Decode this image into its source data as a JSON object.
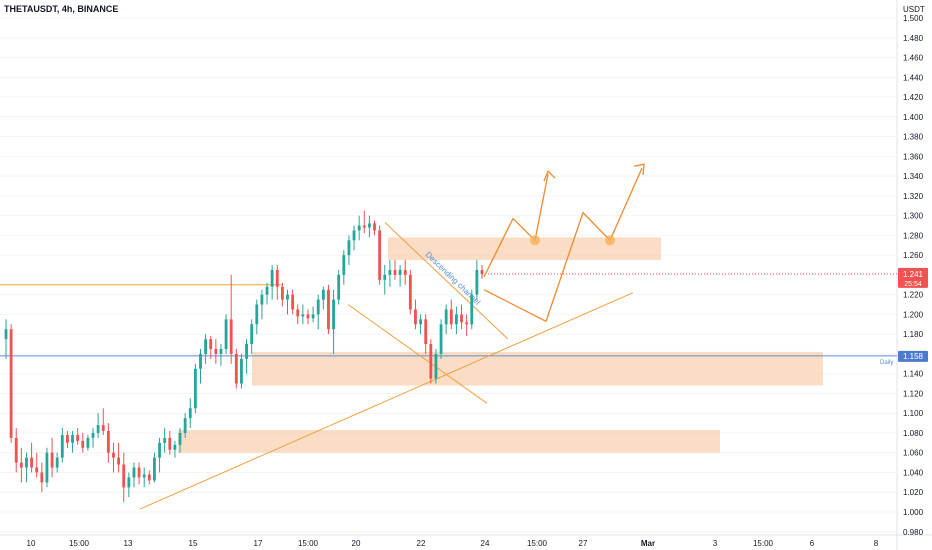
{
  "header": {
    "title": "THETAUSDT, 4h, BINANCE"
  },
  "chart_data": {
    "type": "candlestick",
    "title": "THETAUSDT, 4h, BINANCE",
    "currency": "USDT",
    "price_axis": {
      "ticks": [
        "1.500",
        "1.480",
        "1.460",
        "1.440",
        "1.420",
        "1.400",
        "1.380",
        "1.360",
        "1.340",
        "1.320",
        "1.300",
        "1.280",
        "1.260",
        "1.240",
        "1.220",
        "1.200",
        "1.180",
        "1.160",
        "1.140",
        "1.120",
        "1.100",
        "1.080",
        "1.060",
        "1.040",
        "1.020",
        "1.000",
        "0.980"
      ],
      "range": [
        0.975,
        1.51
      ]
    },
    "time_axis": {
      "ticks": [
        "10",
        "15:00",
        "13",
        "15",
        "17",
        "15:00",
        "20",
        "22",
        "24",
        "15:00",
        "27",
        "Mar",
        "3",
        "15:00",
        "6",
        "8"
      ]
    },
    "last_price": {
      "value": "1.241",
      "countdown": "25:54"
    },
    "daily_level": {
      "label": "Daily",
      "value": "1.158"
    },
    "horizontal_line": {
      "value": 1.23
    },
    "zones": [
      {
        "from": 1.255,
        "to": 1.278
      },
      {
        "from": 1.128,
        "to": 1.162
      },
      {
        "from": 1.06,
        "to": 1.083
      }
    ],
    "annotation": {
      "text": "Descending channel"
    },
    "candles": [
      [
        1.175,
        1.195,
        1.155,
        1.185
      ],
      [
        1.185,
        1.19,
        1.07,
        1.075
      ],
      [
        1.075,
        1.085,
        1.04,
        1.05
      ],
      [
        1.05,
        1.065,
        1.03,
        1.045
      ],
      [
        1.045,
        1.06,
        1.03,
        1.055
      ],
      [
        1.055,
        1.07,
        1.04,
        1.045
      ],
      [
        1.045,
        1.06,
        1.035,
        1.04
      ],
      [
        1.04,
        1.05,
        1.02,
        1.03
      ],
      [
        1.03,
        1.065,
        1.025,
        1.06
      ],
      [
        1.06,
        1.075,
        1.035,
        1.045
      ],
      [
        1.045,
        1.06,
        1.04,
        1.055
      ],
      [
        1.055,
        1.085,
        1.05,
        1.078
      ],
      [
        1.078,
        1.082,
        1.065,
        1.07
      ],
      [
        1.07,
        1.082,
        1.06,
        1.078
      ],
      [
        1.078,
        1.085,
        1.068,
        1.072
      ],
      [
        1.072,
        1.08,
        1.06,
        1.065
      ],
      [
        1.065,
        1.078,
        1.062,
        1.075
      ],
      [
        1.075,
        1.085,
        1.065,
        1.08
      ],
      [
        1.08,
        1.1,
        1.075,
        1.088
      ],
      [
        1.088,
        1.105,
        1.078,
        1.082
      ],
      [
        1.082,
        1.09,
        1.05,
        1.06
      ],
      [
        1.06,
        1.07,
        1.04,
        1.055
      ],
      [
        1.055,
        1.07,
        1.04,
        1.048
      ],
      [
        1.048,
        1.06,
        1.01,
        1.025
      ],
      [
        1.025,
        1.04,
        1.015,
        1.035
      ],
      [
        1.035,
        1.05,
        1.025,
        1.045
      ],
      [
        1.045,
        1.05,
        1.028,
        1.035
      ],
      [
        1.035,
        1.045,
        1.025,
        1.038
      ],
      [
        1.038,
        1.042,
        1.028,
        1.032
      ],
      [
        1.032,
        1.06,
        1.03,
        1.055
      ],
      [
        1.055,
        1.075,
        1.04,
        1.07
      ],
      [
        1.07,
        1.085,
        1.06,
        1.075
      ],
      [
        1.075,
        1.082,
        1.058,
        1.063
      ],
      [
        1.063,
        1.072,
        1.055,
        1.068
      ],
      [
        1.068,
        1.085,
        1.06,
        1.08
      ],
      [
        1.08,
        1.1,
        1.075,
        1.095
      ],
      [
        1.095,
        1.115,
        1.085,
        1.105
      ],
      [
        1.105,
        1.15,
        1.1,
        1.145
      ],
      [
        1.145,
        1.165,
        1.13,
        1.16
      ],
      [
        1.16,
        1.18,
        1.15,
        1.175
      ],
      [
        1.175,
        1.178,
        1.155,
        1.165
      ],
      [
        1.165,
        1.175,
        1.15,
        1.16
      ],
      [
        1.16,
        1.17,
        1.148,
        1.165
      ],
      [
        1.165,
        1.2,
        1.16,
        1.195
      ],
      [
        1.195,
        1.24,
        1.15,
        1.16
      ],
      [
        1.16,
        1.165,
        1.125,
        1.13
      ],
      [
        1.13,
        1.16,
        1.125,
        1.155
      ],
      [
        1.155,
        1.175,
        1.14,
        1.17
      ],
      [
        1.17,
        1.195,
        1.16,
        1.19
      ],
      [
        1.19,
        1.215,
        1.18,
        1.21
      ],
      [
        1.21,
        1.225,
        1.195,
        1.22
      ],
      [
        1.22,
        1.232,
        1.21,
        1.228
      ],
      [
        1.228,
        1.25,
        1.215,
        1.245
      ],
      [
        1.245,
        1.25,
        1.215,
        1.228
      ],
      [
        1.228,
        1.232,
        1.208,
        1.215
      ],
      [
        1.215,
        1.225,
        1.2,
        1.22
      ],
      [
        1.22,
        1.225,
        1.2,
        1.205
      ],
      [
        1.205,
        1.21,
        1.19,
        1.198
      ],
      [
        1.198,
        1.21,
        1.19,
        1.2
      ],
      [
        1.2,
        1.205,
        1.19,
        1.196
      ],
      [
        1.196,
        1.208,
        1.192,
        1.2
      ],
      [
        1.2,
        1.22,
        1.185,
        1.215
      ],
      [
        1.215,
        1.228,
        1.205,
        1.225
      ],
      [
        1.225,
        1.23,
        1.18,
        1.185
      ],
      [
        1.185,
        1.225,
        1.16,
        1.215
      ],
      [
        1.215,
        1.245,
        1.21,
        1.24
      ],
      [
        1.24,
        1.265,
        1.23,
        1.26
      ],
      [
        1.26,
        1.28,
        1.25,
        1.275
      ],
      [
        1.275,
        1.29,
        1.265,
        1.285
      ],
      [
        1.285,
        1.3,
        1.275,
        1.29
      ],
      [
        1.29,
        1.305,
        1.282,
        1.288
      ],
      [
        1.288,
        1.3,
        1.278,
        1.292
      ],
      [
        1.292,
        1.295,
        1.28,
        1.285
      ],
      [
        1.285,
        1.29,
        1.23,
        1.235
      ],
      [
        1.235,
        1.25,
        1.22,
        1.24
      ],
      [
        1.24,
        1.255,
        1.228,
        1.245
      ],
      [
        1.245,
        1.255,
        1.235,
        1.24
      ],
      [
        1.24,
        1.25,
        1.228,
        1.245
      ],
      [
        1.245,
        1.255,
        1.23,
        1.24
      ],
      [
        1.24,
        1.245,
        1.2,
        1.205
      ],
      [
        1.205,
        1.215,
        1.185,
        1.19
      ],
      [
        1.19,
        1.2,
        1.18,
        1.195
      ],
      [
        1.195,
        1.2,
        1.16,
        1.17
      ],
      [
        1.17,
        1.175,
        1.13,
        1.135
      ],
      [
        1.135,
        1.165,
        1.13,
        1.16
      ],
      [
        1.16,
        1.195,
        1.155,
        1.19
      ],
      [
        1.19,
        1.21,
        1.18,
        1.205
      ],
      [
        1.205,
        1.215,
        1.185,
        1.19
      ],
      [
        1.19,
        1.208,
        1.18,
        1.2
      ],
      [
        1.2,
        1.21,
        1.185,
        1.192
      ],
      [
        1.192,
        1.2,
        1.178,
        1.19
      ],
      [
        1.19,
        1.225,
        1.185,
        1.22
      ],
      [
        1.22,
        1.255,
        1.215,
        1.245
      ],
      [
        1.245,
        1.25,
        1.236,
        1.241
      ]
    ],
    "projection_path": [
      [
        1.25,
        "Feb 24"
      ],
      [
        1.295,
        "Feb 25"
      ],
      [
        1.28,
        "Feb 25 15:00"
      ],
      [
        1.345,
        "Feb 26"
      ]
    ],
    "legend": "none",
    "grid": true
  }
}
